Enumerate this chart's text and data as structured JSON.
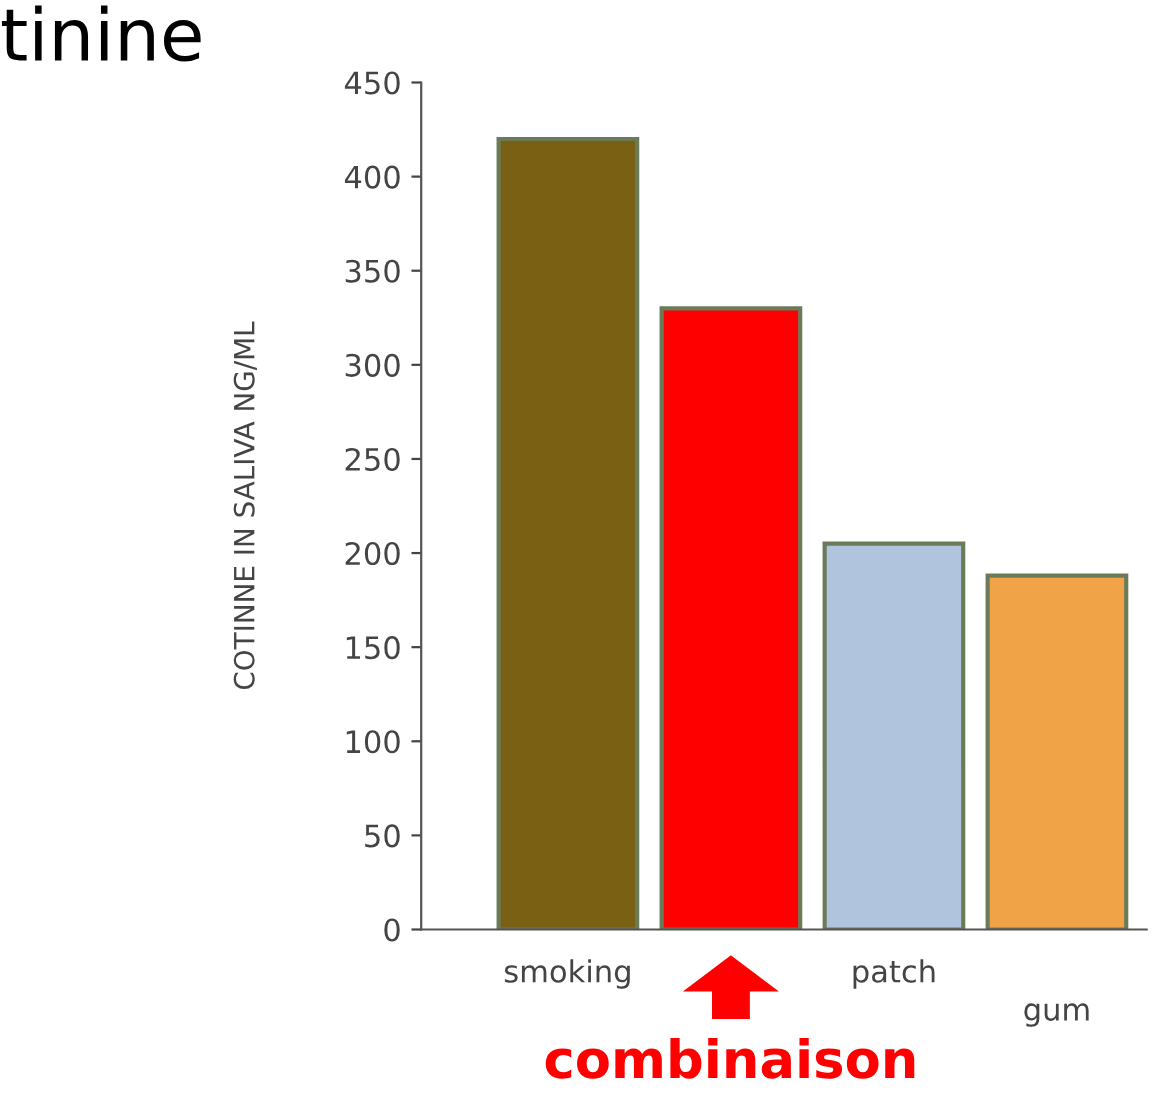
{
  "chart_data": {
    "type": "bar",
    "title": "tinine",
    "ylabel": "COTINNE IN SALIVA NG/ML",
    "categories": [
      "smoking",
      null,
      "patch",
      "gum"
    ],
    "values": [
      420,
      330,
      205,
      188
    ],
    "colors": [
      "#7a6012",
      "#ff0000",
      "#b0c4de",
      "#f0a447"
    ],
    "ylim": [
      0,
      450
    ],
    "yticks": [
      0,
      50,
      100,
      150,
      200,
      250,
      300,
      350,
      400,
      450
    ],
    "grid": false,
    "annotations": [
      "combinaison"
    ]
  }
}
